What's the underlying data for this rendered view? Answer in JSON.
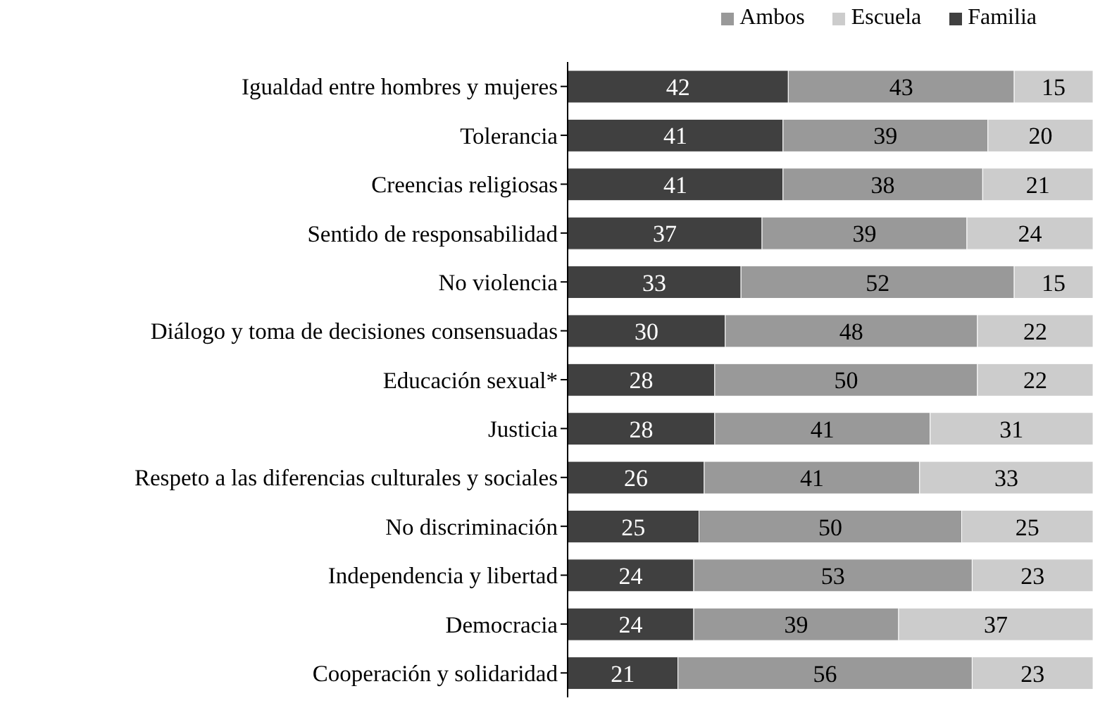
{
  "chart_data": {
    "type": "bar",
    "orientation": "horizontal",
    "stacked": true,
    "data_labels": true,
    "legend": "top right",
    "tick_labels": "y",
    "xlim": [
      0,
      100
    ],
    "categories": [
      "Igualdad entre hombres y mujeres",
      "Tolerancia",
      "Creencias religiosas",
      "Sentido de responsabilidad ",
      "No violencia",
      "Diálogo y toma de decisiones consensuadas",
      "Educación sexual*",
      "Justicia",
      "Respeto a las diferencias culturales y sociales",
      "No discriminación",
      "Independencia y libertad",
      "Democracia",
      "Cooperación y solidaridad"
    ],
    "series": [
      {
        "name": "Familia",
        "color": "#404040",
        "values": [
          42,
          41,
          41,
          37,
          33,
          30,
          28,
          28,
          26,
          25,
          24,
          24,
          21
        ]
      },
      {
        "name": "Ambos",
        "color": "#999999",
        "values": [
          43,
          39,
          38,
          39,
          52,
          48,
          50,
          41,
          41,
          50,
          53,
          39,
          56
        ]
      },
      {
        "name": "Escuela",
        "color": "#cccccc",
        "values": [
          15,
          20,
          21,
          24,
          15,
          22,
          22,
          31,
          33,
          25,
          23,
          37,
          23
        ]
      }
    ]
  }
}
